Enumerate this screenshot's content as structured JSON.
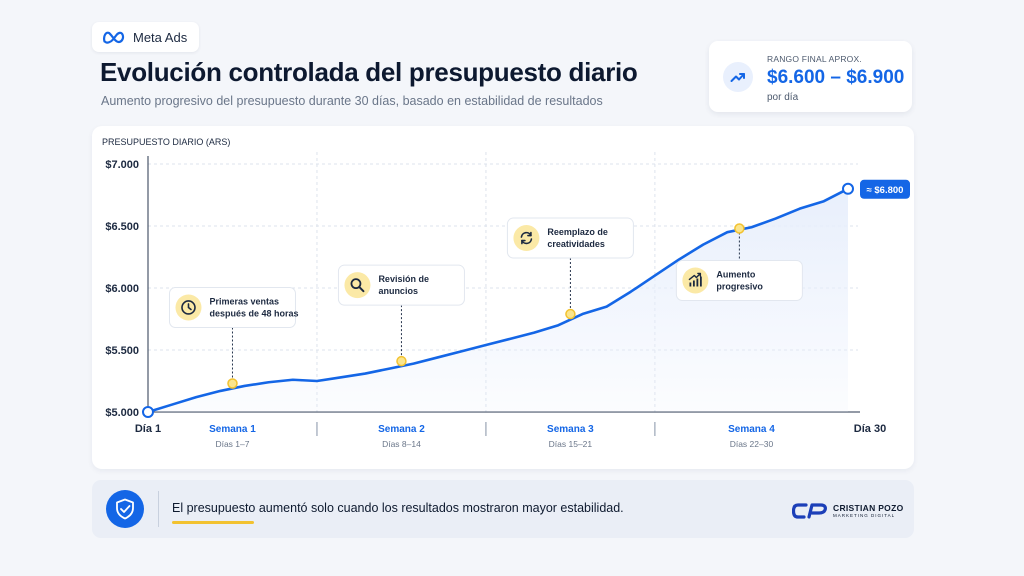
{
  "header": {
    "badge_label": "Meta Ads",
    "title": "Evolución controlada del presupuesto diario",
    "subtitle": "Aumento progresivo del presupuesto durante 30 días, basado en estabilidad de resultados"
  },
  "range_card": {
    "label": "RANGO FINAL APROX.",
    "value": "$6.600 – $6.900",
    "unit": "por día",
    "icon": "trend-up-icon"
  },
  "footer": {
    "text": "El presupuesto aumentó solo cuando los resultados mostraron mayor estabilidad.",
    "brand_name": "CRISTIAN POZO",
    "brand_sub": "MARKETING DIGITAL",
    "brand_logo": "cp-logo"
  },
  "colors": {
    "accent": "#1466e6",
    "highlight": "#f2c230",
    "area_fill": "#e8effc"
  },
  "chart_data": {
    "type": "line",
    "ylabel": "PRESUPUESTO DIARIO (ARS)",
    "ylim": [
      5000,
      7000
    ],
    "xlim": [
      1,
      30
    ],
    "yticks": [
      {
        "value": 5000,
        "label": "$5.000"
      },
      {
        "value": 5500,
        "label": "$5.500"
      },
      {
        "value": 6000,
        "label": "$6.000"
      },
      {
        "value": 6500,
        "label": "$6.500"
      },
      {
        "value": 7000,
        "label": "$7.000"
      }
    ],
    "x_start_label": "Día 1",
    "x_end_label": "Día 30",
    "grid": true,
    "weeks": [
      {
        "name": "Semana 1",
        "days": "Días 1–7",
        "start": 1,
        "end": 8
      },
      {
        "name": "Semana 2",
        "days": "Días 8–14",
        "start": 8,
        "end": 15
      },
      {
        "name": "Semana 3",
        "days": "Días 15–21",
        "start": 15,
        "end": 22
      },
      {
        "name": "Semana 4",
        "days": "Días 22–30",
        "start": 22,
        "end": 30
      }
    ],
    "series": [
      {
        "x": [
          1,
          2,
          3,
          4,
          5,
          6,
          7,
          8,
          9,
          10,
          11,
          12,
          13,
          14,
          15,
          16,
          17,
          18,
          19,
          20,
          21,
          22,
          23,
          24,
          25,
          26,
          27,
          28,
          29,
          30
        ],
        "values": [
          5000,
          5060,
          5120,
          5170,
          5210,
          5240,
          5260,
          5250,
          5280,
          5310,
          5350,
          5390,
          5440,
          5490,
          5540,
          5590,
          5640,
          5700,
          5790,
          5850,
          5970,
          6100,
          6230,
          6350,
          6450,
          6490,
          6560,
          6640,
          6700,
          6800
        ]
      }
    ],
    "end_label": "≈ $6.800",
    "annotations": [
      {
        "x": 4.5,
        "y": 5230,
        "text": [
          "Primeras ventas",
          "después de 48 horas"
        ],
        "icon": "clock-icon",
        "position": "above"
      },
      {
        "x": 11.5,
        "y": 5410,
        "text": [
          "Revisión de",
          "anuncios"
        ],
        "icon": "search-icon",
        "position": "above"
      },
      {
        "x": 18.5,
        "y": 5790,
        "text": [
          "Reemplazo de",
          "creatividades"
        ],
        "icon": "refresh-icon",
        "position": "above"
      },
      {
        "x": 25.5,
        "y": 6480,
        "text": [
          "Aumento",
          "progresivo"
        ],
        "icon": "growth-chart-icon",
        "position": "below"
      }
    ]
  }
}
